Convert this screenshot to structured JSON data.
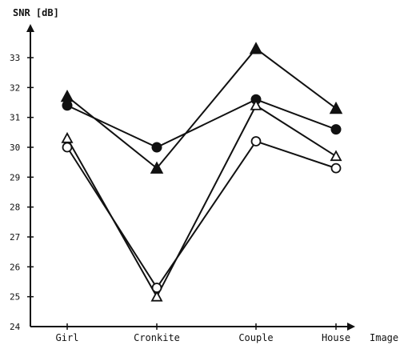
{
  "chart_data": {
    "type": "line",
    "ylabel": "SNR [dB]",
    "xlabel": "Image",
    "categories": [
      "Girl",
      "Cronkite",
      "Couple",
      "House"
    ],
    "ylim": [
      24,
      33.6
    ],
    "yticks": [
      24,
      25,
      26,
      27,
      28,
      29,
      30,
      31,
      32,
      33
    ],
    "grid": false,
    "series": [
      {
        "marker": "filled-triangle",
        "values": [
          31.7,
          29.3,
          33.3,
          31.3
        ]
      },
      {
        "marker": "filled-circle",
        "values": [
          31.4,
          30.0,
          31.6,
          30.6
        ]
      },
      {
        "marker": "open-triangle",
        "values": [
          30.3,
          25.0,
          31.4,
          29.7
        ]
      },
      {
        "marker": "open-circle",
        "values": [
          30.0,
          25.3,
          30.2,
          29.3
        ]
      }
    ]
  }
}
